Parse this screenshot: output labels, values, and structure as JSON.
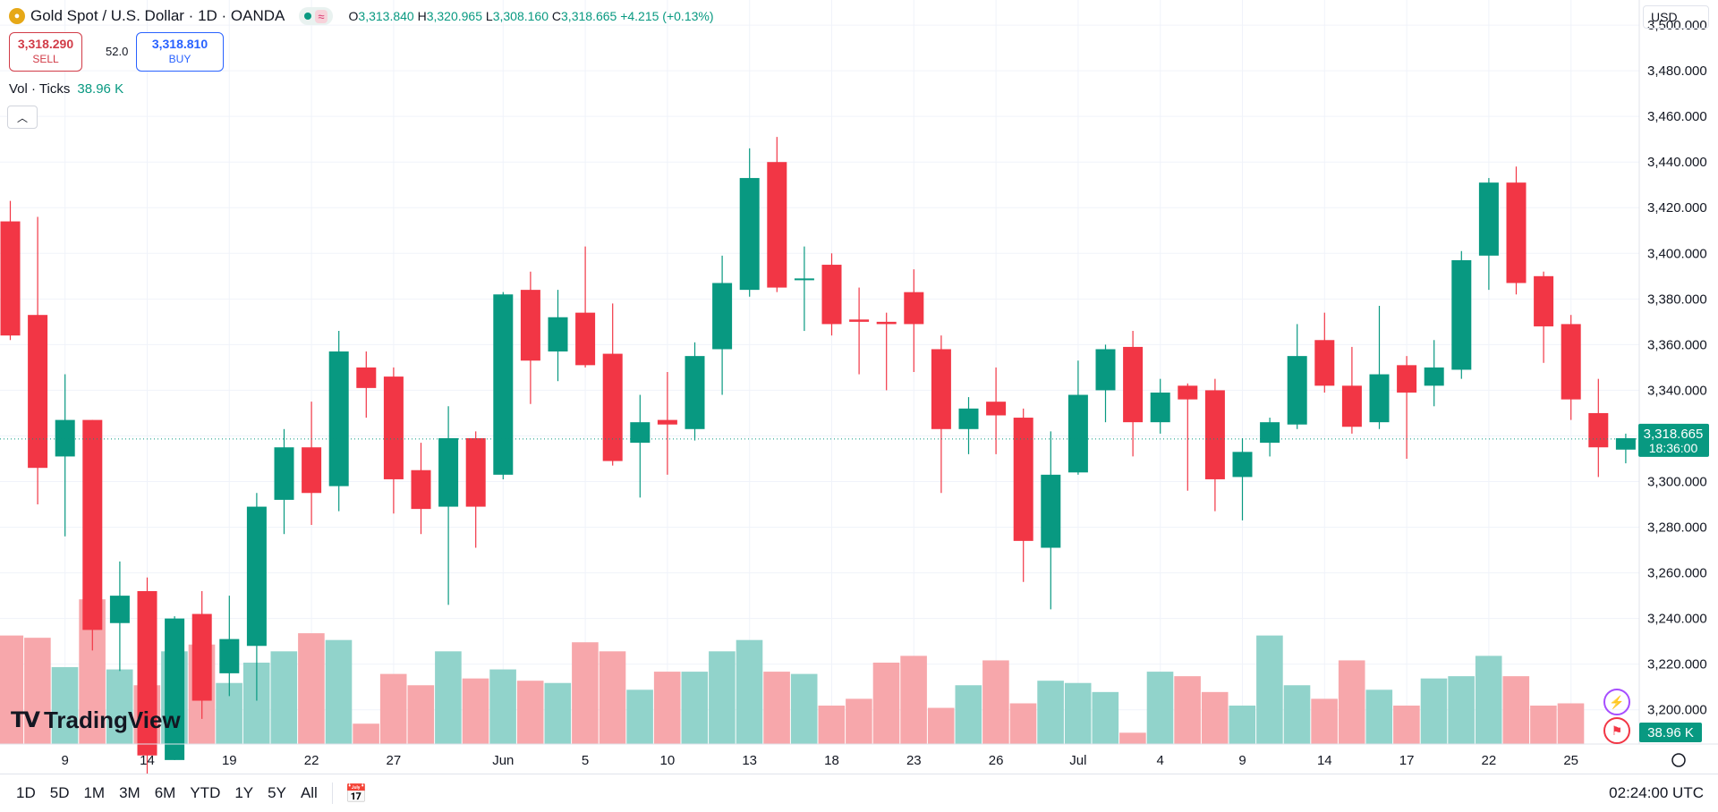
{
  "header": {
    "symbol_title": "Gold Spot / U.S. Dollar · 1D · OANDA",
    "approx_glyph": "≈",
    "ohlc": {
      "o_label": "O",
      "o_value": "3,313.840",
      "h_label": "H",
      "h_value": "3,320.965",
      "l_label": "L",
      "l_value": "3,308.160",
      "c_label": "C",
      "c_value": "3,318.665",
      "change": "+4.215 (+0.13%)"
    }
  },
  "trade": {
    "sell_price": "3,318.290",
    "sell_label": "SELL",
    "spread": "52.0",
    "buy_price": "3,318.810",
    "buy_label": "BUY"
  },
  "volume_legend": {
    "label": "Vol · Ticks",
    "value": "38.96 K"
  },
  "currency_button": "USD",
  "logo_text": "TradingView",
  "timeframes": [
    "1D",
    "5D",
    "1M",
    "3M",
    "6M",
    "YTD",
    "1Y",
    "5Y",
    "All"
  ],
  "clock_text": "02:24:00 UTC",
  "colors": {
    "up": "#089981",
    "down": "#f23645",
    "vol_up": "#91d3cb",
    "vol_down": "#f7a7ab",
    "grid": "#f0f3fa",
    "text": "#131722"
  },
  "chart_data": {
    "type": "candlestick",
    "y_axis_labels": [
      "3,500.000",
      "3,480.000",
      "3,460.000",
      "3,440.000",
      "3,420.000",
      "3,400.000",
      "3,380.000",
      "3,360.000",
      "3,340.000",
      "3,320.000",
      "3,300.000",
      "3,280.000",
      "3,260.000",
      "3,240.000",
      "3,220.000",
      "3,200.000"
    ],
    "y_axis_values": [
      3500,
      3480,
      3460,
      3440,
      3420,
      3400,
      3380,
      3360,
      3340,
      3320,
      3300,
      3280,
      3260,
      3240,
      3220,
      3200
    ],
    "x_axis_labels": [
      {
        "text": "9",
        "index": 2
      },
      {
        "text": "14",
        "index": 5
      },
      {
        "text": "19",
        "index": 8
      },
      {
        "text": "22",
        "index": 11
      },
      {
        "text": "27",
        "index": 14
      },
      {
        "text": "Jun",
        "index": 18
      },
      {
        "text": "5",
        "index": 21
      },
      {
        "text": "10",
        "index": 24
      },
      {
        "text": "13",
        "index": 27
      },
      {
        "text": "18",
        "index": 30
      },
      {
        "text": "23",
        "index": 33
      },
      {
        "text": "26",
        "index": 36
      },
      {
        "text": "Jul",
        "index": 39
      },
      {
        "text": "4",
        "index": 42
      },
      {
        "text": "9",
        "index": 45
      },
      {
        "text": "14",
        "index": 48
      },
      {
        "text": "17",
        "index": 51
      },
      {
        "text": "22",
        "index": 54
      },
      {
        "text": "25",
        "index": 57
      }
    ],
    "candles": [
      {
        "o": 3414,
        "h": 3423,
        "l": 3362,
        "c": 3364,
        "vol": 0.48
      },
      {
        "o": 3373,
        "h": 3416,
        "l": 3290,
        "c": 3306,
        "vol": 0.47
      },
      {
        "o": 3311,
        "h": 3347,
        "l": 3276,
        "c": 3327,
        "vol": 0.34
      },
      {
        "o": 3327,
        "h": 3327,
        "l": 3226,
        "c": 3235,
        "vol": 0.64
      },
      {
        "o": 3238,
        "h": 3265,
        "l": 3217,
        "c": 3250,
        "vol": 0.33
      },
      {
        "o": 3252,
        "h": 3258,
        "l": 3166,
        "c": 3180,
        "vol": 0.26
      },
      {
        "o": 3178,
        "h": 3241,
        "l": 3178,
        "c": 3240,
        "vol": 0.41
      },
      {
        "o": 3242,
        "h": 3252,
        "l": 3196,
        "c": 3204,
        "vol": 0.44
      },
      {
        "o": 3216,
        "h": 3250,
        "l": 3206,
        "c": 3231,
        "vol": 0.27
      },
      {
        "o": 3228,
        "h": 3295,
        "l": 3204,
        "c": 3289,
        "vol": 0.36
      },
      {
        "o": 3292,
        "h": 3323,
        "l": 3277,
        "c": 3315,
        "vol": 0.41
      },
      {
        "o": 3315,
        "h": 3335,
        "l": 3281,
        "c": 3295,
        "vol": 0.49
      },
      {
        "o": 3298,
        "h": 3366,
        "l": 3287,
        "c": 3357,
        "vol": 0.46
      },
      {
        "o": 3350,
        "h": 3357,
        "l": 3328,
        "c": 3341,
        "vol": 0.09
      },
      {
        "o": 3346,
        "h": 3350,
        "l": 3286,
        "c": 3301,
        "vol": 0.31
      },
      {
        "o": 3305,
        "h": 3317,
        "l": 3277,
        "c": 3288,
        "vol": 0.26
      },
      {
        "o": 3289,
        "h": 3333,
        "l": 3246,
        "c": 3319,
        "vol": 0.41
      },
      {
        "o": 3319,
        "h": 3322,
        "l": 3271,
        "c": 3289,
        "vol": 0.29
      },
      {
        "o": 3303,
        "h": 3383,
        "l": 3301,
        "c": 3382,
        "vol": 0.33
      },
      {
        "o": 3384,
        "h": 3392,
        "l": 3334,
        "c": 3353,
        "vol": 0.28
      },
      {
        "o": 3357,
        "h": 3384,
        "l": 3344,
        "c": 3372,
        "vol": 0.27
      },
      {
        "o": 3374,
        "h": 3403,
        "l": 3350,
        "c": 3351,
        "vol": 0.45
      },
      {
        "o": 3356,
        "h": 3378,
        "l": 3307,
        "c": 3309,
        "vol": 0.41
      },
      {
        "o": 3317,
        "h": 3338,
        "l": 3293,
        "c": 3326,
        "vol": 0.24
      },
      {
        "o": 3327,
        "h": 3348,
        "l": 3303,
        "c": 3325,
        "vol": 0.32
      },
      {
        "o": 3323,
        "h": 3361,
        "l": 3318,
        "c": 3355,
        "vol": 0.32
      },
      {
        "o": 3358,
        "h": 3399,
        "l": 3338,
        "c": 3387,
        "vol": 0.41
      },
      {
        "o": 3384,
        "h": 3446,
        "l": 3381,
        "c": 3433,
        "vol": 0.46
      },
      {
        "o": 3440,
        "h": 3451,
        "l": 3383,
        "c": 3385,
        "vol": 0.32
      },
      {
        "o": 3389,
        "h": 3403,
        "l": 3366,
        "c": 3389,
        "vol": 0.31
      },
      {
        "o": 3395,
        "h": 3400,
        "l": 3364,
        "c": 3369,
        "vol": 0.17
      },
      {
        "o": 3371,
        "h": 3385,
        "l": 3347,
        "c": 3370,
        "vol": 0.2
      },
      {
        "o": 3370,
        "h": 3374,
        "l": 3340,
        "c": 3369,
        "vol": 0.36
      },
      {
        "o": 3383,
        "h": 3393,
        "l": 3348,
        "c": 3369,
        "vol": 0.39
      },
      {
        "o": 3358,
        "h": 3364,
        "l": 3295,
        "c": 3323,
        "vol": 0.16
      },
      {
        "o": 3323,
        "h": 3337,
        "l": 3312,
        "c": 3332,
        "vol": 0.26
      },
      {
        "o": 3335,
        "h": 3350,
        "l": 3312,
        "c": 3329,
        "vol": 0.37
      },
      {
        "o": 3328,
        "h": 3332,
        "l": 3256,
        "c": 3274,
        "vol": 0.18
      },
      {
        "o": 3271,
        "h": 3322,
        "l": 3244,
        "c": 3303,
        "vol": 0.28
      },
      {
        "o": 3304,
        "h": 3353,
        "l": 3303,
        "c": 3338,
        "vol": 0.27
      },
      {
        "o": 3340,
        "h": 3360,
        "l": 3326,
        "c": 3358,
        "vol": 0.23
      },
      {
        "o": 3359,
        "h": 3366,
        "l": 3311,
        "c": 3326,
        "vol": 0.05
      },
      {
        "o": 3326,
        "h": 3345,
        "l": 3321,
        "c": 3339,
        "vol": 0.32
      },
      {
        "o": 3342,
        "h": 3343,
        "l": 3296,
        "c": 3336,
        "vol": 0.3
      },
      {
        "o": 3340,
        "h": 3345,
        "l": 3287,
        "c": 3301,
        "vol": 0.23
      },
      {
        "o": 3302,
        "h": 3319,
        "l": 3283,
        "c": 3313,
        "vol": 0.17
      },
      {
        "o": 3317,
        "h": 3328,
        "l": 3311,
        "c": 3326,
        "vol": 0.48
      },
      {
        "o": 3325,
        "h": 3369,
        "l": 3323,
        "c": 3355,
        "vol": 0.26
      },
      {
        "o": 3362,
        "h": 3374,
        "l": 3339,
        "c": 3342,
        "vol": 0.2
      },
      {
        "o": 3342,
        "h": 3359,
        "l": 3321,
        "c": 3324,
        "vol": 0.37
      },
      {
        "o": 3326,
        "h": 3377,
        "l": 3323,
        "c": 3347,
        "vol": 0.24
      },
      {
        "o": 3351,
        "h": 3355,
        "l": 3310,
        "c": 3339,
        "vol": 0.17
      },
      {
        "o": 3342,
        "h": 3362,
        "l": 3333,
        "c": 3350,
        "vol": 0.29
      },
      {
        "o": 3349,
        "h": 3401,
        "l": 3345,
        "c": 3397,
        "vol": 0.3
      },
      {
        "o": 3399,
        "h": 3433,
        "l": 3384,
        "c": 3431,
        "vol": 0.39
      },
      {
        "o": 3431,
        "h": 3438,
        "l": 3382,
        "c": 3387,
        "vol": 0.3
      },
      {
        "o": 3390,
        "h": 3392,
        "l": 3352,
        "c": 3368,
        "vol": 0.17
      },
      {
        "o": 3369,
        "h": 3373,
        "l": 3327,
        "c": 3336,
        "vol": 0.18
      },
      {
        "o": 3330,
        "h": 3345,
        "l": 3302,
        "c": 3315,
        "vol": 0.0
      },
      {
        "o": 3314,
        "h": 3321,
        "l": 3308,
        "c": 3319,
        "vol": 0.0
      }
    ],
    "last_price_label": "3,318.665",
    "countdown_label": "18:36:00",
    "last_price": 3318.665,
    "volume_axis_label": "38.96 K",
    "ylim": [
      3185,
      3511
    ]
  }
}
